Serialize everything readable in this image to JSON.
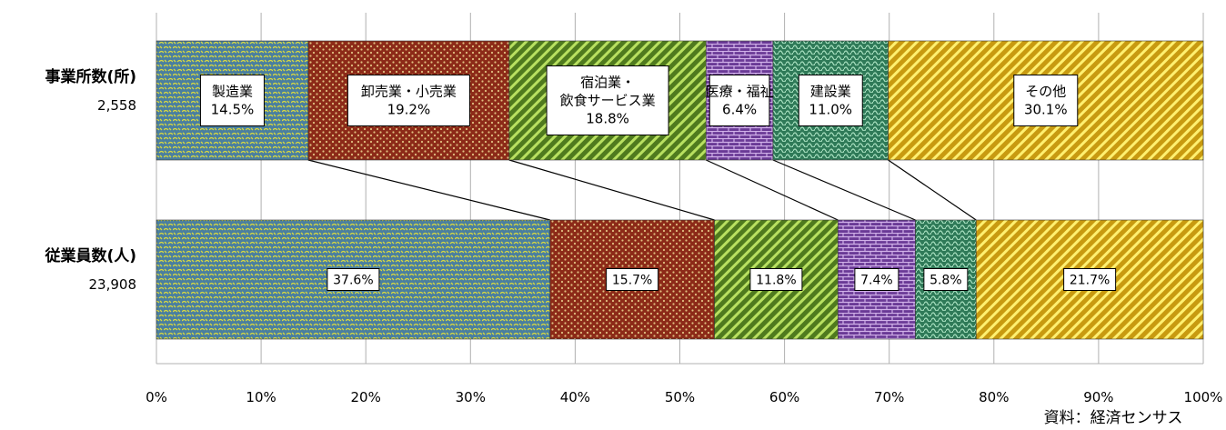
{
  "chart_data": {
    "type": "bar",
    "orientation": "horizontal",
    "stacked": "percent",
    "rows": [
      {
        "label": "事業所数(所)",
        "total": "2,558"
      },
      {
        "label": "従業員数(人)",
        "total": "23,908"
      }
    ],
    "series": [
      {
        "name": "製造業",
        "label_lines": [
          "製造業"
        ],
        "values": [
          14.5,
          37.6
        ],
        "color": "#4a7fa0",
        "pattern_color": "#d8d840",
        "pattern": "weave"
      },
      {
        "name": "卸売業・小売業",
        "label_lines": [
          "卸売業・小売業"
        ],
        "values": [
          19.2,
          15.7
        ],
        "color": "#8c2a18",
        "pattern_color": "#e0c080",
        "pattern": "dots"
      },
      {
        "name": "宿泊業・飲食サービス業",
        "label_lines": [
          "宿泊業・",
          "飲食サービス業"
        ],
        "values": [
          18.8,
          11.8
        ],
        "color": "#4f7a1e",
        "pattern_color": "#b8e060",
        "pattern": "diag"
      },
      {
        "name": "医療・福祉",
        "label_lines": [
          "医療・福祉"
        ],
        "values": [
          6.4,
          7.4
        ],
        "color": "#6a3a96",
        "pattern_color": "#d0b0e8",
        "pattern": "brick"
      },
      {
        "name": "建設業",
        "label_lines": [
          "建設業"
        ],
        "values": [
          11.0,
          5.8
        ],
        "color": "#2f7a58",
        "pattern_color": "#a8e0c0",
        "pattern": "wave"
      },
      {
        "name": "その他",
        "label_lines": [
          "その他"
        ],
        "values": [
          30.1,
          21.7
        ],
        "color": "#c89a10",
        "pattern_color": "#fff070",
        "pattern": "diag"
      }
    ],
    "value_labels": [
      [
        "14.5%",
        "19.2%",
        "18.8%",
        "6.4%",
        "11.0%",
        "30.1%"
      ],
      [
        "37.6%",
        "15.7%",
        "11.8%",
        "7.4%",
        "5.8%",
        "21.7%"
      ]
    ],
    "x_ticks": [
      "0%",
      "10%",
      "20%",
      "30%",
      "40%",
      "50%",
      "60%",
      "70%",
      "80%",
      "90%",
      "100%"
    ],
    "xlim": [
      0,
      100
    ],
    "grid": true,
    "source": "資料：経済センサス"
  }
}
